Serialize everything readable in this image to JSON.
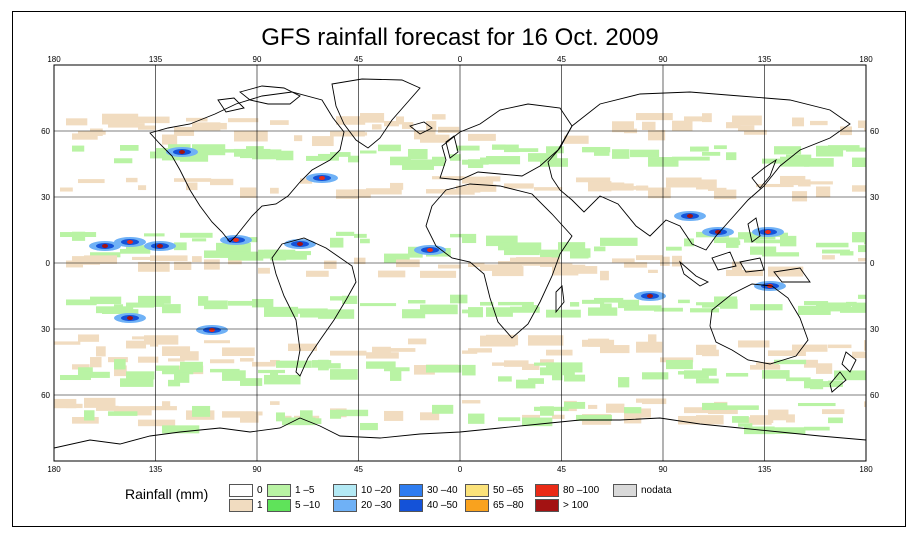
{
  "title": "GFS rainfall forecast for 16 Oct. 2009",
  "lon_ticks": [
    "180",
    "135",
    "90",
    "45",
    "0",
    "45",
    "90",
    "135",
    "180"
  ],
  "lat_ticks": [
    "60",
    "30",
    "0",
    "30",
    "60"
  ],
  "legend": {
    "title": "Rainfall (mm)",
    "items": [
      {
        "label": "0",
        "color": "#ffffff"
      },
      {
        "label": "1",
        "color": "#f1dcc0"
      },
      {
        "label": "1 –5",
        "color": "#b9f3a4"
      },
      {
        "label": "5 –10",
        "color": "#5fe35a"
      },
      {
        "label": "10 –20",
        "color": "#b3e9f4"
      },
      {
        "label": "20 –30",
        "color": "#6fb1f6"
      },
      {
        "label": "30 –40",
        "color": "#2f7df0"
      },
      {
        "label": "40 –50",
        "color": "#1452d8"
      },
      {
        "label": "50 –65",
        "color": "#fbe27a"
      },
      {
        "label": "65 –80",
        "color": "#f9a21e"
      },
      {
        "label": "80 –100",
        "color": "#ea2b16"
      },
      {
        "label": "> 100",
        "color": "#a31212"
      },
      {
        "label": "nodata",
        "color": "#d9d9d9"
      }
    ]
  }
}
